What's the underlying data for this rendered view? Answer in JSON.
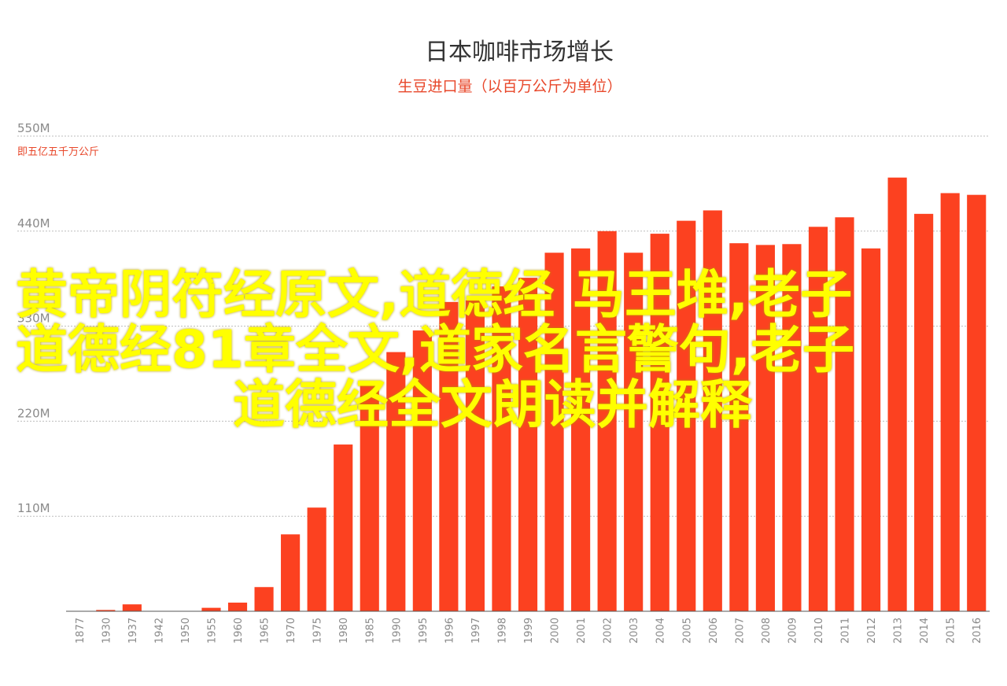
{
  "chart_data": {
    "type": "bar",
    "title": "日本咖啡市场增长",
    "subtitle": "生豆进口量（以百万公斤为单位）",
    "y_unit_note": "即五亿五千万公斤",
    "y_ticks": [
      "550M",
      "440M",
      "330M",
      "220M",
      "110M"
    ],
    "y_tick_values": [
      550,
      440,
      330,
      220,
      110
    ],
    "ylim": [
      0,
      550
    ],
    "grid": true,
    "bar_color": "#fc4120",
    "categories": [
      "1877",
      "1930",
      "1937",
      "1942",
      "1950",
      "1955",
      "1960",
      "1965",
      "1970",
      "1975",
      "1980",
      "1985",
      "1990",
      "1995",
      "1996",
      "1997",
      "1998",
      "1999",
      "2000",
      "2001",
      "2002",
      "2003",
      "2004",
      "2005",
      "2006",
      "2007",
      "2008",
      "2009",
      "2010",
      "2011",
      "2012",
      "2013",
      "2014",
      "2015",
      "2016"
    ],
    "values": [
      0,
      1.5,
      8,
      0,
      0,
      4,
      10,
      28,
      89,
      120,
      193,
      262,
      300,
      325,
      358,
      360,
      376,
      386,
      415,
      420,
      440,
      415,
      437,
      452,
      464,
      426,
      424,
      425,
      445,
      456,
      420,
      502,
      460,
      484,
      482
    ]
  },
  "overlay": {
    "line1": "黄帝阴符经原文,道德经 马王堆,老子",
    "line2": "道德经81章全文,道家名言警句,老子",
    "line3": "道德经全文朗读并解释"
  }
}
